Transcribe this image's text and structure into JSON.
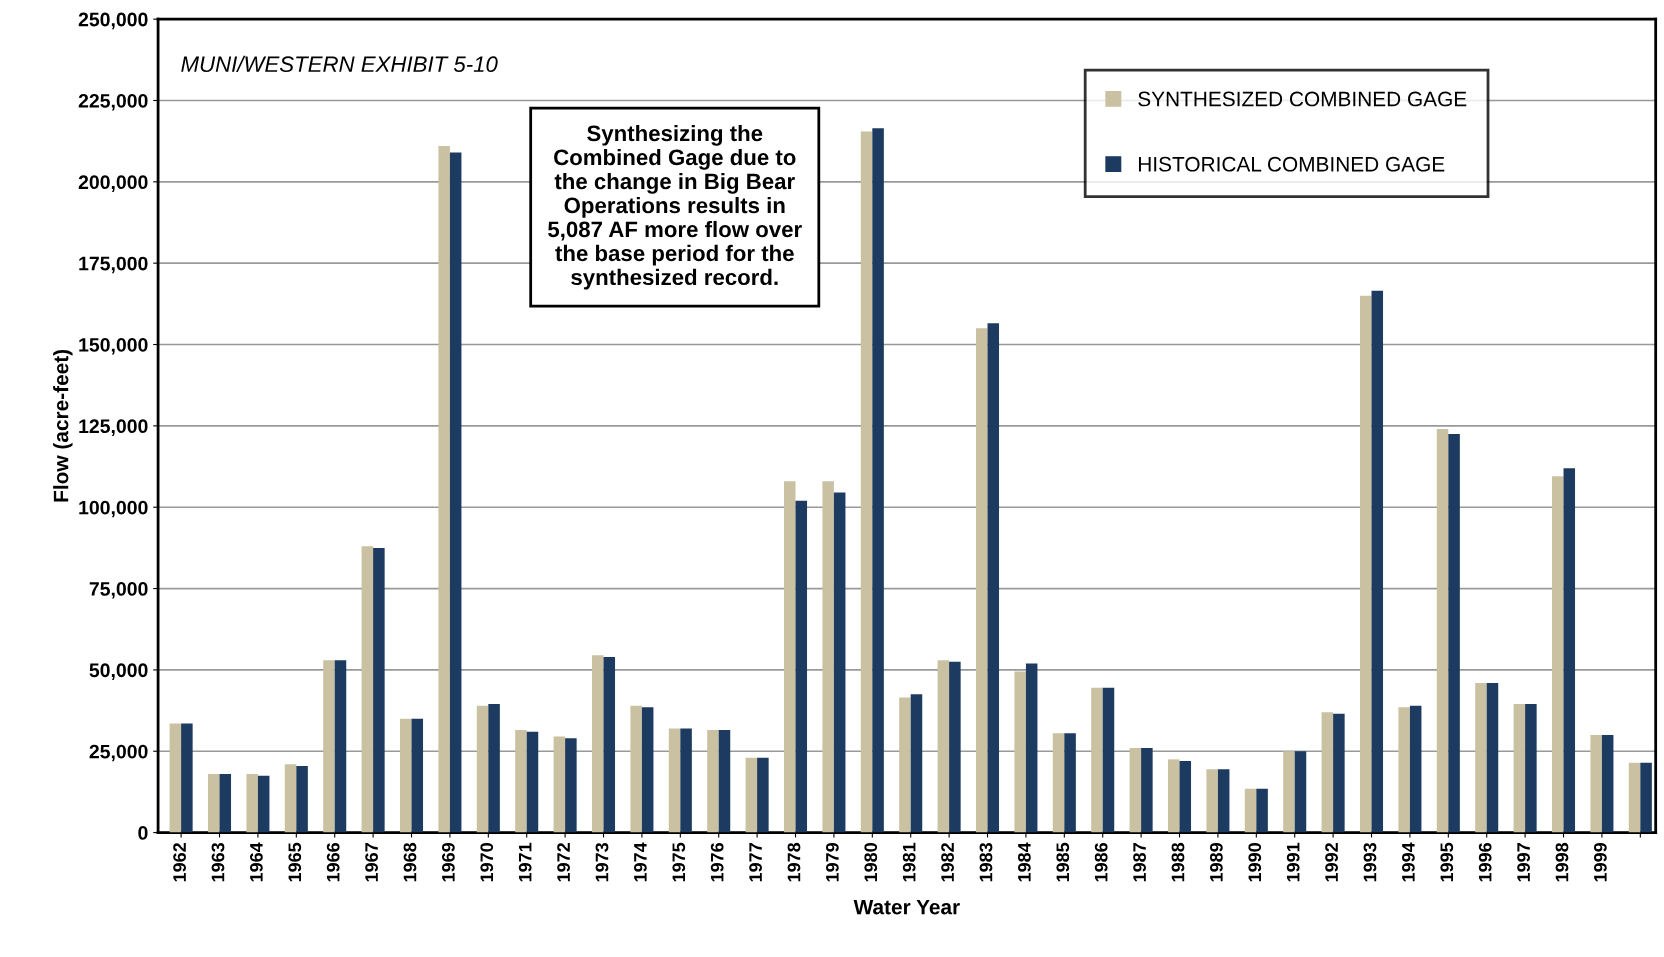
{
  "chart_data": {
    "type": "bar",
    "xlabel": "Water Year",
    "ylabel": "Flow (acre-feet)",
    "annotations": [
      "MUNI/WESTERN EXHIBIT 5-10",
      "Synthesizing the Combined Gage due to the change in Big Bear Operations results in 5,087 AF more flow over the base period for the synthesized record."
    ],
    "categories": [
      "1962",
      "1963",
      "1964",
      "1965",
      "1966",
      "1967",
      "1968",
      "1969",
      "1970",
      "1971",
      "1972",
      "1973",
      "1974",
      "1975",
      "1976",
      "1977",
      "1978",
      "1979",
      "1980",
      "1981",
      "1982",
      "1983",
      "1984",
      "1985",
      "1986",
      "1987",
      "1988",
      "1989",
      "1990",
      "1991",
      "1992",
      "1993",
      "1994",
      "1995",
      "1996",
      "1997",
      "1998",
      "1999",
      null
    ],
    "series": [
      {
        "name": "SYNTHESIZED COMBINED GAGE",
        "color": "#c9c1a1",
        "values": [
          33500,
          18000,
          18000,
          21000,
          53000,
          88000,
          35000,
          211000,
          39000,
          31500,
          29500,
          54500,
          39000,
          32000,
          31500,
          23000,
          108000,
          108000,
          215500,
          41500,
          53000,
          155000,
          49500,
          30500,
          44500,
          26000,
          22500,
          19500,
          13500,
          25000,
          37000,
          165000,
          38500,
          124000,
          46000,
          39500,
          109500,
          30000,
          21500
        ]
      },
      {
        "name": "HISTORICAL COMBINED GAGE",
        "color": "#1d3a60",
        "values": [
          33500,
          18000,
          17500,
          20500,
          53000,
          87500,
          35000,
          209000,
          39500,
          31000,
          29000,
          54000,
          38500,
          32000,
          31500,
          23000,
          102000,
          104500,
          216500,
          42500,
          52500,
          156500,
          52000,
          30500,
          44500,
          26000,
          22000,
          19500,
          13500,
          25000,
          36500,
          166500,
          39000,
          122500,
          46000,
          39500,
          112000,
          30000,
          21500
        ]
      }
    ],
    "ylim": [
      0,
      250000
    ],
    "yticks": [
      {
        "value": 0,
        "label": "0"
      },
      {
        "value": 25000,
        "label": "25,000"
      },
      {
        "value": 50000,
        "label": "50,000"
      },
      {
        "value": 75000,
        "label": "75,000"
      },
      {
        "value": 100000,
        "label": "100,000"
      },
      {
        "value": 125000,
        "label": "125,000"
      },
      {
        "value": 150000,
        "label": "150,000"
      },
      {
        "value": 175000,
        "label": "175,000"
      },
      {
        "value": 200000,
        "label": "200,000"
      },
      {
        "value": 225000,
        "label": "225,000"
      },
      {
        "value": 250000,
        "label": "250,000"
      }
    ],
    "grid": "y",
    "legend": "top right"
  }
}
